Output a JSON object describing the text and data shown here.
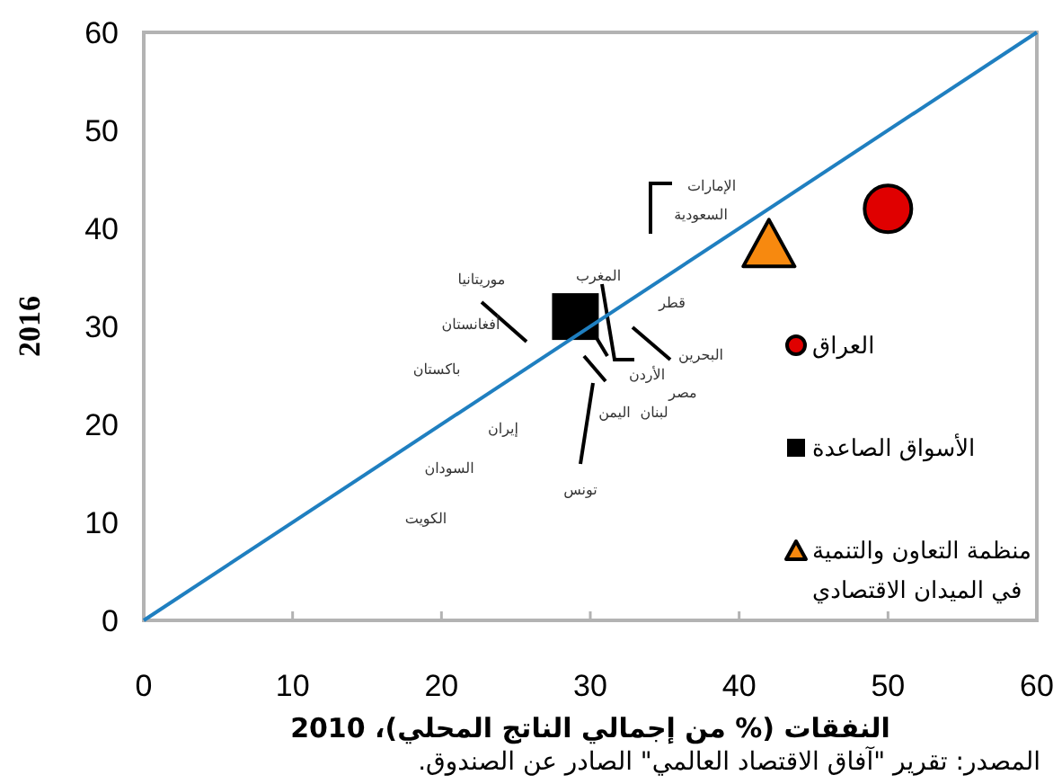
{
  "chart_data": {
    "type": "scatter",
    "xlabel": "النفقات (% من إجمالي الناتج المحلي)، 2010",
    "ylabel": "2016",
    "xlim": [
      0,
      60
    ],
    "ylim": [
      0,
      60
    ],
    "xticks": [
      0,
      10,
      20,
      30,
      40,
      50,
      60
    ],
    "yticks": [
      0,
      10,
      20,
      30,
      40,
      50,
      60
    ],
    "grid": false,
    "legend": "right",
    "series": [
      {
        "name": "العراق",
        "marker": "circle",
        "color": "#e00000",
        "x": [
          50
        ],
        "values": [
          42
        ]
      },
      {
        "name": "الأسواق الصاعدة",
        "marker": "square",
        "color": "#000000",
        "x": [
          29
        ],
        "values": [
          31
        ]
      },
      {
        "name": "منظمة التعاون والتنمية\nفي الميدان الاقتصادي",
        "marker": "triangle",
        "color": "#f7890f",
        "x": [
          42
        ],
        "values": [
          38.5
        ]
      },
      {
        "type": "line",
        "color": "#1f7fc0",
        "x": [
          0,
          60
        ],
        "values": [
          0,
          60
        ]
      }
    ],
    "annotations": [
      "الإمارات",
      "السعودية",
      "موريتانيا",
      "أفغانستان",
      "باكستان",
      "المغرب",
      "قطر",
      "البحرين",
      "الأردن",
      "مصر",
      "لبنان",
      "اليمن",
      "إيران",
      "السودان",
      "تونس",
      "الكويت",
      "المصدر: تقرير \"آفاق الاقتصاد العالمي\" الصادر عن الصندوق."
    ]
  }
}
